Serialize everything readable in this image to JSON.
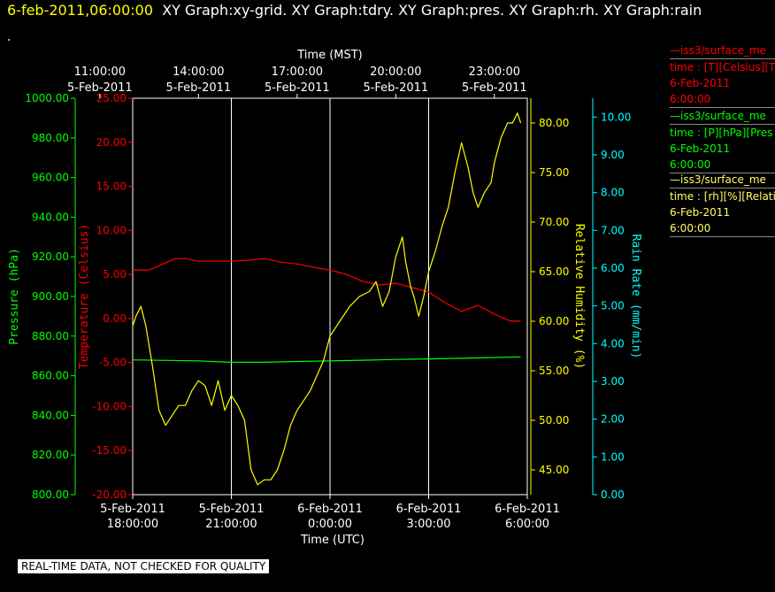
{
  "header": {
    "timestamp": "6-feb-2011,06:00:00",
    "graphs_text": "XY Graph:xy-grid.  XY Graph:tdry.  XY Graph:pres.  XY Graph:rh.  XY Graph:rain",
    "dot": "."
  },
  "legend": [
    {
      "line1": "—iss3/surface_me",
      "line2": "time : [T][Celsius][T",
      "line3": "6-Feb-2011",
      "line4": "6:00:00",
      "color": "#ff0000"
    },
    {
      "line1": "—iss3/surface_me",
      "line2": "time : [P][hPa][Pres",
      "line3": "6-Feb-2011",
      "line4": "6:00:00",
      "color": "#00ff00"
    },
    {
      "line1": "—iss3/surface_me",
      "line2": "time : [rh][%][Relati",
      "line3": "6-Feb-2011",
      "line4": "6:00:00",
      "color": "#ffff66"
    }
  ],
  "footer": {
    "note": "REAL-TIME DATA, NOT CHECKED FOR QUALITY"
  },
  "chart_data": {
    "type": "line",
    "title": "",
    "x_top": {
      "label": "Time (MST)",
      "ticks": [
        {
          "t": 17,
          "l1": "11:00:00",
          "l2": "5-Feb-2011"
        },
        {
          "t": 20,
          "l1": "14:00:00",
          "l2": "5-Feb-2011"
        },
        {
          "t": 23,
          "l1": "17:00:00",
          "l2": "5-Feb-2011"
        },
        {
          "t": 26,
          "l1": "20:00:00",
          "l2": "5-Feb-2011"
        },
        {
          "t": 29,
          "l1": "23:00:00",
          "l2": "5-Feb-2011"
        }
      ]
    },
    "x_bottom": {
      "label": "Time (UTC)",
      "ticks": [
        {
          "t": 18,
          "l1": "5-Feb-2011",
          "l2": "18:00:00"
        },
        {
          "t": 21,
          "l1": "5-Feb-2011",
          "l2": "21:00:00"
        },
        {
          "t": 24,
          "l1": "6-Feb-2011",
          "l2": "0:00:00"
        },
        {
          "t": 27,
          "l1": "6-Feb-2011",
          "l2": "3:00:00"
        },
        {
          "t": 30,
          "l1": "6-Feb-2011",
          "l2": "6:00:00"
        }
      ]
    },
    "xlim": [
      18,
      30
    ],
    "grid_x": [
      21,
      24,
      27
    ],
    "axes": [
      {
        "id": "pres",
        "label": "Pressure (hPa)",
        "color": "#00ff00",
        "lim": [
          800,
          1000
        ],
        "ticks": [
          "800.00",
          "820.00",
          "840.00",
          "860.00",
          "880.00",
          "900.00",
          "920.00",
          "940.00",
          "960.00",
          "980.00",
          "1000.00"
        ]
      },
      {
        "id": "temp",
        "label": "Temperature (Celsius)",
        "color": "#ff0000",
        "lim": [
          -20,
          25
        ],
        "ticks": [
          "-20.00",
          "-15.00",
          "-10.00",
          "-5.00",
          "0.00",
          "5.00",
          "10.00",
          "15.00",
          "20.00",
          "25.00"
        ]
      },
      {
        "id": "rh",
        "label": "Relative Humidity (%)",
        "color": "#ffff00",
        "lim": [
          42.5,
          82.5
        ],
        "ticks": [
          "45.00",
          "50.00",
          "55.00",
          "60.00",
          "65.00",
          "70.00",
          "75.00",
          "80.00"
        ]
      },
      {
        "id": "rain",
        "label": "Rain Rate (mm/min)",
        "color": "#00ffff",
        "lim": [
          0,
          10.5
        ],
        "ticks": [
          "0.00",
          "1.00",
          "2.00",
          "3.00",
          "4.00",
          "5.00",
          "6.00",
          "7.00",
          "8.00",
          "9.00",
          "10.00"
        ]
      }
    ],
    "series": [
      {
        "axis": "temp",
        "color": "#ff0000",
        "x": [
          18.0,
          18.5,
          19.0,
          19.3,
          19.6,
          20.0,
          20.5,
          21.0,
          21.5,
          22.0,
          22.5,
          23.0,
          23.5,
          24.0,
          24.5,
          25.0,
          25.5,
          26.0,
          26.5,
          27.0,
          27.5,
          28.0,
          28.5,
          29.0,
          29.5,
          29.8
        ],
        "y": [
          5.5,
          5.5,
          6.3,
          6.8,
          6.8,
          6.5,
          6.5,
          6.5,
          6.6,
          6.8,
          6.4,
          6.2,
          5.8,
          5.5,
          5.0,
          4.2,
          3.8,
          4.0,
          3.5,
          3.0,
          1.8,
          0.8,
          1.5,
          0.5,
          -0.3,
          -0.3
        ]
      },
      {
        "axis": "pres",
        "color": "#00ff00",
        "x": [
          18.0,
          20.0,
          21.0,
          22.0,
          23.0,
          24.0,
          25.0,
          26.0,
          27.0,
          28.0,
          29.0,
          29.8
        ],
        "y": [
          868.0,
          867.5,
          866.8,
          866.8,
          867.2,
          867.5,
          867.8,
          868.2,
          868.5,
          868.8,
          869.2,
          869.5
        ]
      },
      {
        "axis": "rh",
        "color": "#ffff00",
        "x": [
          18.0,
          18.1,
          18.25,
          18.4,
          18.6,
          18.8,
          19.0,
          19.2,
          19.4,
          19.6,
          19.8,
          20.0,
          20.2,
          20.4,
          20.6,
          20.8,
          21.0,
          21.2,
          21.4,
          21.6,
          21.8,
          22.0,
          22.2,
          22.4,
          22.6,
          22.8,
          23.0,
          23.2,
          23.4,
          23.6,
          23.8,
          24.0,
          24.3,
          24.6,
          24.9,
          25.2,
          25.4,
          25.6,
          25.8,
          26.0,
          26.2,
          26.3,
          26.45,
          26.55,
          26.7,
          26.85,
          27.0,
          27.2,
          27.4,
          27.6,
          27.8,
          28.0,
          28.2,
          28.35,
          28.5,
          28.7,
          28.9,
          29.0,
          29.2,
          29.4,
          29.55,
          29.7,
          29.8
        ],
        "y": [
          59.5,
          60.5,
          61.5,
          59.5,
          55.5,
          51.0,
          49.5,
          50.5,
          51.5,
          51.5,
          53.0,
          54.0,
          53.5,
          51.5,
          54.0,
          51.0,
          52.5,
          51.5,
          50.0,
          45.0,
          43.5,
          44.0,
          44.0,
          45.0,
          47.0,
          49.5,
          51.0,
          52.0,
          53.0,
          54.5,
          56.0,
          58.5,
          60.0,
          61.5,
          62.5,
          63.0,
          64.0,
          61.5,
          63.0,
          66.5,
          68.5,
          66.0,
          63.5,
          62.5,
          60.5,
          62.5,
          65.0,
          67.0,
          69.5,
          71.5,
          75.0,
          78.0,
          75.5,
          73.0,
          71.5,
          73.0,
          74.0,
          76.0,
          78.5,
          80.0,
          80.0,
          81.0,
          80.0
        ]
      }
    ]
  }
}
